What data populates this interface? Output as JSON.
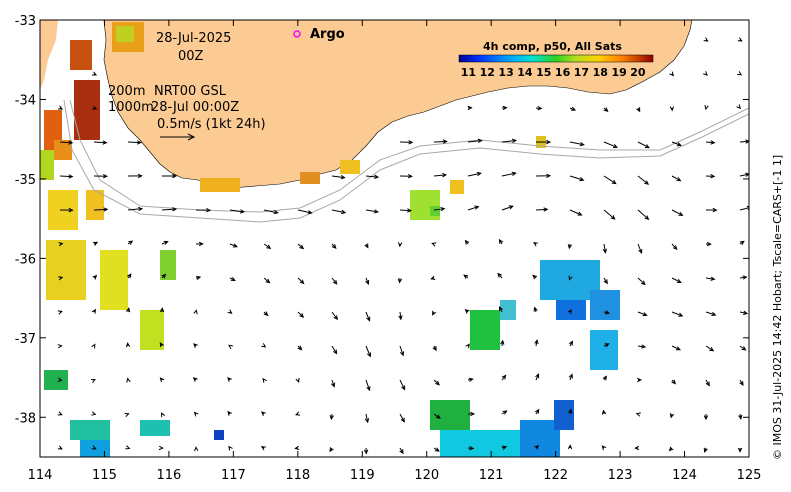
{
  "date_text": "28-Jul-2025",
  "time_text": "00Z",
  "argo_label": "Argo",
  "depth_label_1": "200m",
  "depth_label_2": "1000m",
  "product_label": "NRT00 GSL",
  "product_time": "28-Jul 00:00Z",
  "scale_label": "0.5m/s (1kt 24h)",
  "colorbar": {
    "title": "4h comp, p50, All Sats",
    "ticks": [
      "11",
      "12",
      "13",
      "14",
      "15",
      "16",
      "17",
      "18",
      "19",
      "20"
    ],
    "min": 10.5,
    "max": 20.8
  },
  "side_credit": "© IMOS 31-Jul-2025 14:42 Hobart; Tscale=CARS+[-1 1]",
  "x_axis": {
    "ticks": [
      "114",
      "115",
      "116",
      "117",
      "118",
      "119",
      "120",
      "121",
      "122",
      "123",
      "124",
      "125"
    ],
    "range": [
      114,
      125
    ]
  },
  "y_axis": {
    "ticks": [
      "-33",
      "-34",
      "-35",
      "-36",
      "-37",
      "-38"
    ],
    "range": [
      -38.5,
      -33
    ]
  },
  "colors": {
    "land": "#fccb94",
    "argo": "#ff00ff",
    "contour": "#a8a8a8"
  }
}
